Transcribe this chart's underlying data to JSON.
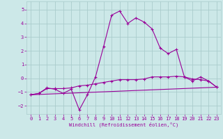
{
  "bg_color": "#cce8e8",
  "grid_color": "#aacccc",
  "line_color": "#990099",
  "xlabel": "Windchill (Refroidissement éolien,°C)",
  "x_ticks": [
    0,
    1,
    2,
    3,
    4,
    5,
    6,
    7,
    8,
    9,
    10,
    11,
    12,
    13,
    14,
    15,
    16,
    17,
    18,
    19,
    20,
    21,
    22,
    23
  ],
  "ylim": [
    -2.6,
    5.6
  ],
  "xlim": [
    -0.5,
    23.5
  ],
  "yticks": [
    -2,
    -1,
    0,
    1,
    2,
    3,
    4,
    5
  ],
  "series1_x": [
    0,
    1,
    2,
    3,
    4,
    5,
    6,
    7,
    8,
    9,
    10,
    11,
    12,
    13,
    14,
    15,
    16,
    17,
    18,
    19,
    20,
    21,
    22,
    23
  ],
  "series1_y": [
    -1.2,
    -1.1,
    -0.75,
    -0.75,
    -0.75,
    -0.7,
    -0.55,
    -0.5,
    -0.4,
    -0.3,
    -0.2,
    -0.1,
    -0.1,
    -0.1,
    -0.05,
    0.1,
    0.1,
    0.1,
    0.15,
    0.1,
    -0.05,
    -0.1,
    -0.2,
    -0.65
  ],
  "series2_x": [
    0,
    1,
    2,
    3,
    4,
    5,
    6,
    7,
    8,
    9,
    10,
    11,
    12,
    13,
    14,
    15,
    16,
    17,
    18,
    19,
    20,
    21,
    22,
    23
  ],
  "series2_y": [
    -1.2,
    -1.1,
    -0.7,
    -0.8,
    -1.1,
    -0.8,
    -2.3,
    -1.2,
    0.1,
    2.3,
    4.6,
    4.9,
    4.0,
    4.4,
    4.1,
    3.6,
    2.2,
    1.8,
    2.1,
    0.1,
    -0.2,
    0.1,
    -0.2,
    -0.65
  ],
  "series3_x": [
    0,
    23
  ],
  "series3_y": [
    -1.2,
    -0.65
  ]
}
